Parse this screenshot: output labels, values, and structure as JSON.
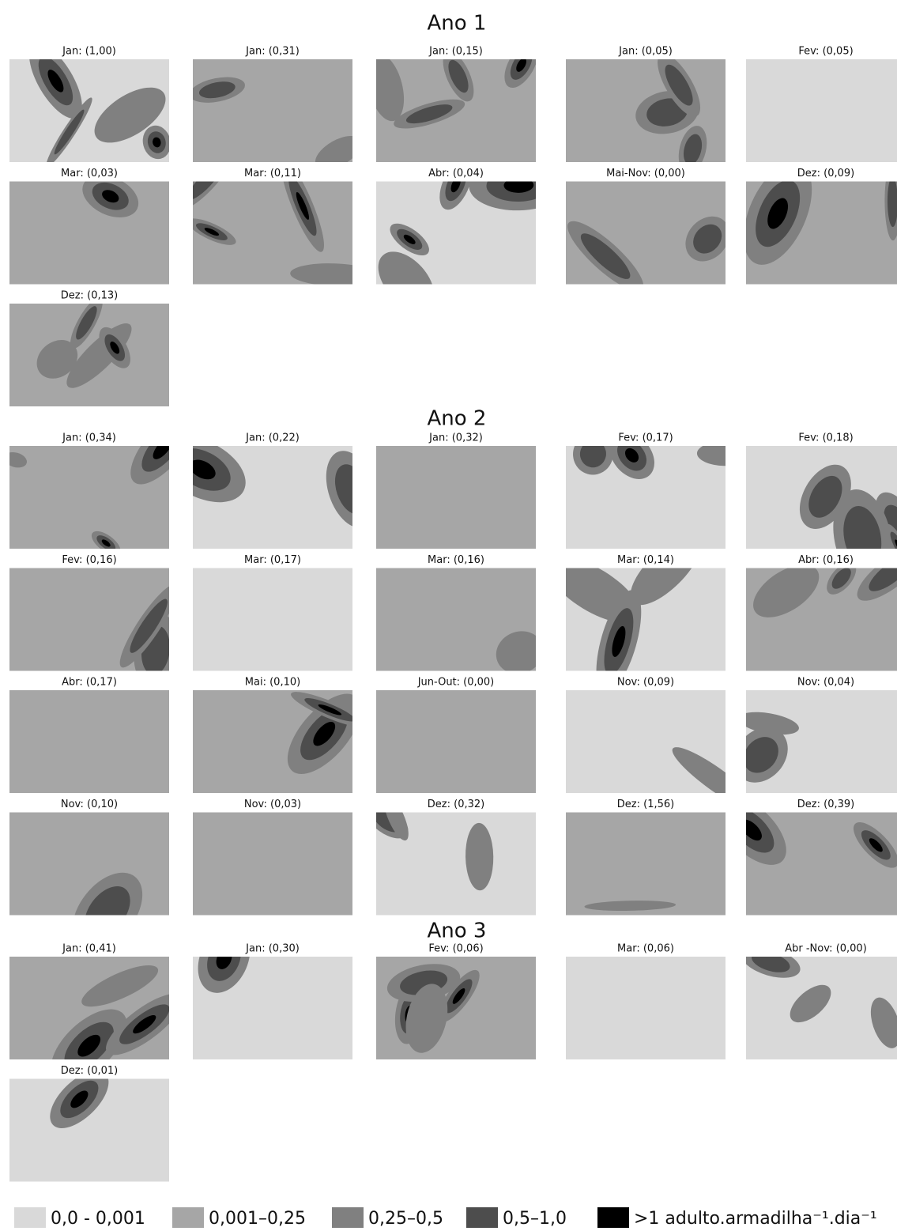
{
  "sections": [
    {
      "title": "Ano 1",
      "panels": [
        "Jan: (1,00)",
        "Jan: (0,31)",
        "Jan: (0,15)",
        "Jan: (0,05)",
        "Fev: (0,05)",
        "Mar: (0,03)",
        "Mar: (0,11)",
        "Abr: (0,04)",
        "Mai-Nov: (0,00)",
        "Dez: (0,09)",
        "Dez: (0,13)"
      ]
    },
    {
      "title": "Ano 2",
      "panels": [
        "Jan: (0,34)",
        "Jan: (0,22)",
        "Jan: (0,32)",
        "Fev: (0,17)",
        "Fev: (0,18)",
        "Fev: (0,16)",
        "Mar: (0,17)",
        "Mar: (0,16)",
        "Mar: (0,14)",
        "Abr: (0,16)",
        "Abr: (0,17)",
        "Mai: (0,10)",
        "Jun-Out: (0,00)",
        "Nov: (0,09)",
        "Nov: (0,04)",
        "Nov: (0,10)",
        "Nov: (0,03)",
        "Dez: (0,32)",
        "Dez: (1,56)",
        "Dez: (0,39)"
      ]
    },
    {
      "title": "Ano 3",
      "panels": [
        "Jan: (0,41)",
        "Jan: (0,30)",
        "Fev: (0,06)",
        "Mar: (0,06)",
        "Abr -Nov: (0,00)",
        "Dez: (0,01)"
      ]
    }
  ],
  "legend": [
    {
      "label": "0,0 - 0,001",
      "color": "#d9d9d9"
    },
    {
      "label": "0,001–0,25",
      "color": "#a6a6a6"
    },
    {
      "label": "0,25–0,5",
      "color": "#808080"
    },
    {
      "label": "0,5–1,0",
      "color": "#4d4d4d"
    },
    {
      "label": ">1 adulto.armadilha⁻¹.dia⁻¹",
      "color": "#000000"
    }
  ]
}
